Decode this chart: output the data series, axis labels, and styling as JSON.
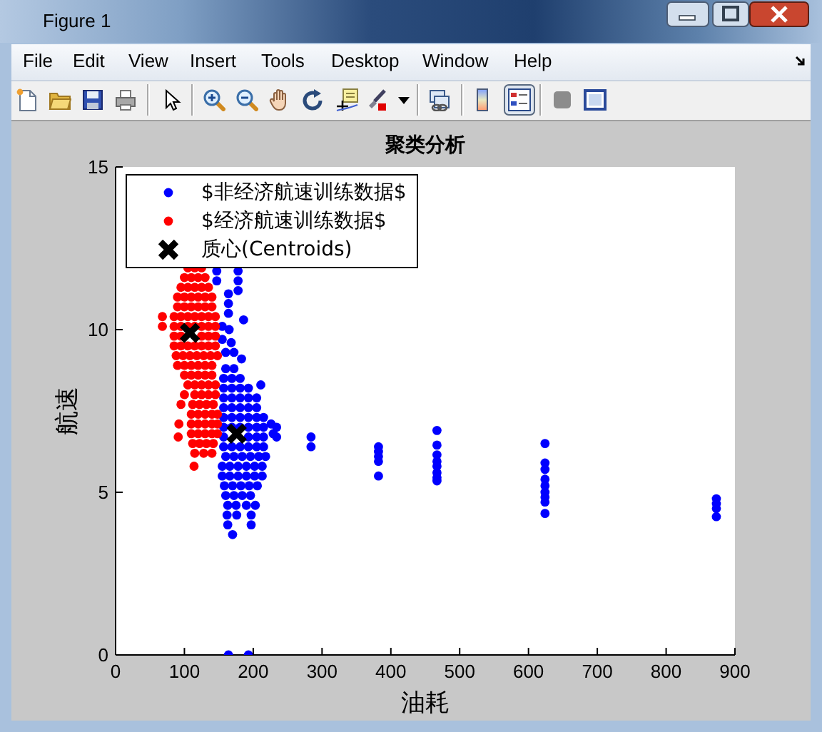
{
  "chart_data": {
    "type": "scatter",
    "title": "聚类分析",
    "xlabel": "油耗",
    "ylabel": "航速",
    "xlim": [
      0,
      900
    ],
    "xticks": [
      0,
      100,
      200,
      300,
      400,
      500,
      600,
      700,
      800,
      900
    ],
    "ylim": [
      0,
      15
    ],
    "yticks": [
      0,
      5,
      10,
      15
    ],
    "legend": "top left",
    "marker": "circle",
    "series": [
      {
        "name": "$非经济航速训练数据$",
        "color": "#0000ff",
        "x": [
          147,
          147,
          164,
          164,
          164,
          178,
          178,
          178,
          186,
          155,
          165,
          155,
          168,
          160,
          172,
          183,
          211,
          226,
          229,
          160,
          172,
          157,
          169,
          181,
          157,
          169,
          181,
          193,
          157,
          169,
          181,
          193,
          205,
          157,
          169,
          181,
          193,
          205,
          157,
          169,
          181,
          193,
          205,
          215,
          157,
          169,
          181,
          193,
          205,
          215,
          157,
          193,
          205,
          215,
          157,
          169,
          181,
          193,
          205,
          215,
          160,
          172,
          184,
          196,
          208,
          218,
          155,
          166,
          178,
          190,
          202,
          213,
          155,
          166,
          178,
          190,
          202,
          213,
          158,
          170,
          182,
          194,
          206,
          160,
          172,
          184,
          196,
          163,
          175,
          190,
          203,
          162,
          176,
          197,
          163,
          197,
          170,
          164,
          193,
          234,
          234,
          284,
          284,
          382,
          382,
          382,
          382,
          382,
          467,
          467,
          467,
          467,
          467,
          467,
          467,
          467,
          624,
          624,
          624,
          624,
          624,
          624,
          624,
          624,
          624,
          873,
          873,
          873,
          873
        ],
        "values": [
          11.8,
          11.5,
          11.1,
          10.8,
          10.5,
          11.8,
          11.5,
          11.2,
          10.3,
          10.1,
          10.0,
          9.7,
          9.6,
          9.3,
          9.3,
          9.1,
          8.3,
          7.1,
          6.8,
          8.8,
          8.8,
          8.5,
          8.5,
          8.5,
          8.2,
          8.2,
          8.2,
          8.2,
          7.9,
          7.9,
          7.9,
          7.9,
          7.9,
          7.6,
          7.6,
          7.6,
          7.6,
          7.6,
          7.3,
          7.3,
          7.3,
          7.3,
          7.3,
          7.3,
          7.0,
          7.0,
          7.0,
          7.0,
          7.0,
          7.0,
          6.7,
          6.7,
          6.7,
          6.7,
          6.4,
          6.4,
          6.4,
          6.4,
          6.4,
          6.4,
          6.1,
          6.1,
          6.1,
          6.1,
          6.1,
          6.1,
          5.8,
          5.8,
          5.8,
          5.8,
          5.8,
          5.8,
          5.5,
          5.5,
          5.5,
          5.5,
          5.5,
          5.5,
          5.2,
          5.2,
          5.2,
          5.2,
          5.2,
          4.9,
          4.9,
          4.9,
          4.9,
          4.6,
          4.6,
          4.6,
          4.6,
          4.3,
          4.3,
          4.3,
          4.0,
          4.0,
          3.7,
          0,
          0,
          7.0,
          6.7,
          6.7,
          6.4,
          6.4,
          6.25,
          6.1,
          5.95,
          5.5,
          6.9,
          6.45,
          6.15,
          5.95,
          5.8,
          5.6,
          5.45,
          5.35,
          6.5,
          5.9,
          5.7,
          5.4,
          5.2,
          5.0,
          4.85,
          4.7,
          4.35,
          4.8,
          4.65,
          4.5,
          4.25
        ]
      },
      {
        "name": "$经济航速训练数据$",
        "color": "#ff0000",
        "x": [
          105,
          115,
          125,
          100,
          110,
          120,
          130,
          95,
          105,
          115,
          125,
          135,
          90,
          100,
          110,
          120,
          130,
          140,
          90,
          100,
          110,
          120,
          130,
          140,
          68,
          85,
          95,
          105,
          115,
          125,
          135,
          145,
          68,
          85,
          95,
          105,
          115,
          125,
          135,
          145,
          85,
          95,
          125,
          135,
          145,
          85,
          95,
          105,
          115,
          125,
          135,
          145,
          88,
          98,
          108,
          118,
          128,
          138,
          148,
          90,
          100,
          110,
          120,
          130,
          140,
          100,
          110,
          120,
          130,
          140,
          105,
          115,
          125,
          135,
          145,
          100,
          115,
          125,
          135,
          145,
          95,
          112,
          122,
          132,
          142,
          110,
          120,
          130,
          140,
          148,
          92,
          110,
          120,
          130,
          140,
          148,
          110,
          120,
          130,
          140,
          148,
          91,
          112,
          122,
          132,
          142,
          115,
          128,
          140,
          114
        ],
        "values": [
          11.9,
          11.9,
          11.9,
          11.6,
          11.6,
          11.6,
          11.6,
          11.3,
          11.3,
          11.3,
          11.3,
          11.3,
          11.0,
          11.0,
          11.0,
          11.0,
          11.0,
          11.0,
          10.7,
          10.7,
          10.7,
          10.7,
          10.7,
          10.7,
          10.4,
          10.4,
          10.4,
          10.4,
          10.4,
          10.4,
          10.4,
          10.4,
          10.1,
          10.1,
          10.1,
          10.1,
          10.1,
          10.1,
          10.1,
          10.1,
          9.8,
          9.8,
          9.8,
          9.8,
          9.8,
          9.5,
          9.5,
          9.5,
          9.5,
          9.5,
          9.5,
          9.5,
          9.2,
          9.2,
          9.2,
          9.2,
          9.2,
          9.2,
          9.2,
          8.9,
          8.9,
          8.9,
          8.9,
          8.9,
          8.9,
          8.6,
          8.6,
          8.6,
          8.6,
          8.6,
          8.3,
          8.3,
          8.3,
          8.3,
          8.3,
          8.0,
          8.0,
          8.0,
          8.0,
          8.0,
          7.7,
          7.7,
          7.7,
          7.7,
          7.7,
          7.4,
          7.4,
          7.4,
          7.4,
          7.4,
          7.1,
          7.1,
          7.1,
          7.1,
          7.1,
          7.1,
          6.8,
          6.8,
          6.8,
          6.8,
          6.8,
          6.7,
          6.5,
          6.5,
          6.5,
          6.5,
          6.2,
          6.2,
          6.2,
          5.8
        ]
      },
      {
        "name": "质心(Centroids)",
        "color": "#000000",
        "marker": "cross",
        "x": [
          108,
          176
        ],
        "values": [
          9.9,
          6.8
        ]
      }
    ],
    "annotations": [
      "Figure 1",
      "File",
      "Edit",
      "View",
      "Insert",
      "Tools",
      "Desktop",
      "Window",
      "Help"
    ]
  }
}
